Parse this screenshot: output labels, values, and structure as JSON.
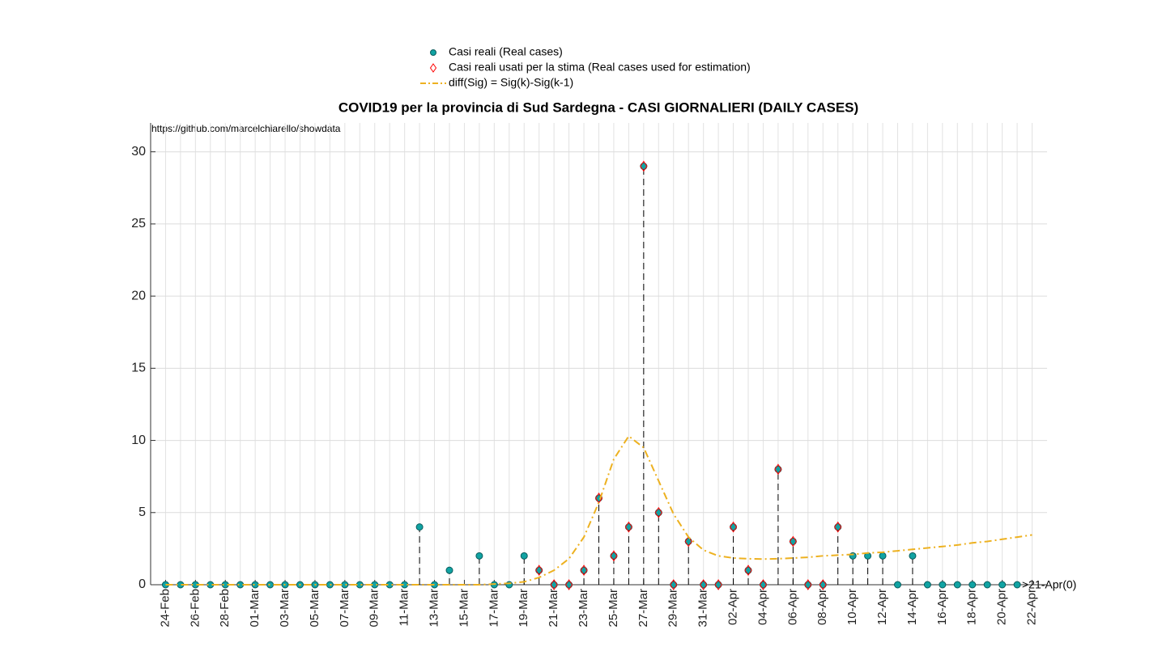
{
  "chart_data": {
    "type": "stem",
    "title": "COVID19 per la provincia di Sud Sardegna - CASI GIORNALIERI (DAILY CASES)",
    "source": "https://github.com/marcelchiarello/showdata",
    "annotation": ">21-Apr(0)",
    "categories": [
      "24-Feb",
      null,
      "26-Feb",
      null,
      "28-Feb",
      null,
      "01-Mar",
      null,
      "03-Mar",
      null,
      "05-Mar",
      null,
      "07-Mar",
      null,
      "09-Mar",
      null,
      "11-Mar",
      null,
      "13-Mar",
      null,
      "15-Mar",
      null,
      "17-Mar",
      null,
      "19-Mar",
      null,
      "21-Mar",
      null,
      "23-Mar",
      null,
      "25-Mar",
      null,
      "27-Mar",
      null,
      "29-Mar",
      null,
      "31-Mar",
      null,
      "02-Apr",
      null,
      "04-Apr",
      null,
      "06-Apr",
      null,
      "08-Apr",
      null,
      "10-Apr",
      null,
      "12-Apr",
      null,
      "14-Apr",
      null,
      "16-Apr",
      null,
      "18-Apr",
      null,
      "20-Apr",
      null,
      "22-Apr"
    ],
    "series": [
      {
        "name": "Casi reali (Real cases)",
        "color": "#11a3a3",
        "kind": "stem",
        "values": [
          0,
          0,
          0,
          0,
          0,
          0,
          0,
          0,
          0,
          0,
          0,
          0,
          0,
          0,
          0,
          0,
          0,
          4,
          0,
          1,
          null,
          2,
          0,
          0,
          2,
          1,
          0,
          0,
          1,
          6,
          2,
          4,
          29,
          5,
          0,
          3,
          0,
          0,
          4,
          1,
          0,
          8,
          3,
          0,
          0,
          4,
          2,
          2,
          2,
          0,
          2,
          0,
          0,
          0,
          0,
          0,
          0,
          0,
          null
        ]
      },
      {
        "name": "Casi reali usati per la stima (Real cases used for estimation)",
        "color": "#ff0000",
        "kind": "diamond",
        "values": [
          null,
          null,
          null,
          null,
          null,
          null,
          null,
          null,
          null,
          null,
          null,
          null,
          null,
          null,
          null,
          null,
          null,
          null,
          null,
          null,
          null,
          null,
          null,
          null,
          null,
          1,
          0,
          0,
          1,
          6,
          2,
          4,
          29,
          5,
          0,
          3,
          0,
          0,
          4,
          1,
          0,
          8,
          3,
          0,
          0,
          4,
          null,
          null,
          null,
          null,
          null,
          null,
          null,
          null,
          null,
          null,
          null,
          null,
          null
        ]
      },
      {
        "name": "diff(Sig) = Sig(k)-Sig(k-1)",
        "color": "#EDB120",
        "kind": "line",
        "values": [
          0,
          0,
          0,
          0,
          0,
          0,
          0,
          0,
          0,
          0,
          0,
          0,
          0,
          0,
          0,
          0,
          0,
          0,
          0,
          0,
          0,
          0,
          0.05,
          0.1,
          0.2,
          0.5,
          1.0,
          1.8,
          3.3,
          5.7,
          8.7,
          10.3,
          9.5,
          7.2,
          4.9,
          3.3,
          2.4,
          2.0,
          1.85,
          1.8,
          1.78,
          1.8,
          1.85,
          1.9,
          2.0,
          2.05,
          2.1,
          2.2,
          2.25,
          2.35,
          2.45,
          2.55,
          2.65,
          2.75,
          2.9,
          3.0,
          3.15,
          3.3,
          3.45
        ]
      }
    ],
    "ylim": [
      0,
      32
    ],
    "yticks": [
      0,
      5,
      10,
      15,
      20,
      25,
      30
    ],
    "grid": true
  }
}
